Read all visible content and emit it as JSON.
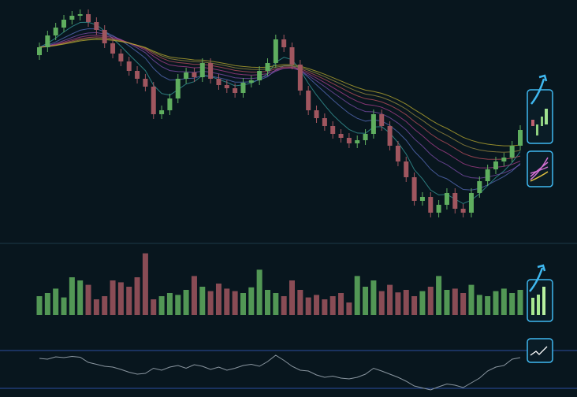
{
  "chart_data": [
    {
      "type": "candlestick",
      "up_color": "#5fae5f",
      "down_color": "#a0565f",
      "ylim": [
        0,
        300
      ],
      "open": [
        230,
        240,
        255,
        265,
        275,
        280,
        282,
        272,
        262,
        245,
        232,
        222,
        210,
        200,
        190,
        155,
        160,
        175,
        200,
        208,
        202,
        220,
        200,
        192,
        188,
        182,
        195,
        198,
        210,
        220,
        250,
        240,
        218,
        185,
        160,
        150,
        140,
        130,
        125,
        118,
        122,
        130,
        155,
        140,
        115,
        95,
        75,
        45,
        50,
        30,
        40,
        55,
        35,
        30,
        55,
        70,
        85,
        95,
        100,
        115
      ],
      "close": [
        240,
        255,
        265,
        275,
        280,
        282,
        272,
        262,
        245,
        232,
        222,
        210,
        200,
        190,
        155,
        160,
        175,
        200,
        208,
        202,
        220,
        200,
        192,
        188,
        182,
        195,
        198,
        210,
        220,
        250,
        240,
        218,
        185,
        160,
        150,
        140,
        130,
        125,
        118,
        122,
        130,
        155,
        140,
        115,
        95,
        75,
        45,
        50,
        30,
        40,
        55,
        35,
        30,
        55,
        70,
        85,
        95,
        100,
        115,
        135
      ],
      "high": [
        246,
        261,
        271,
        281,
        286,
        288,
        288,
        278,
        268,
        251,
        238,
        228,
        216,
        206,
        196,
        166,
        181,
        206,
        214,
        214,
        226,
        226,
        206,
        198,
        194,
        201,
        204,
        216,
        226,
        256,
        256,
        246,
        224,
        191,
        166,
        156,
        146,
        136,
        131,
        128,
        136,
        161,
        161,
        146,
        121,
        101,
        81,
        56,
        56,
        46,
        61,
        61,
        41,
        61,
        76,
        91,
        101,
        106,
        121,
        141
      ],
      "low": [
        224,
        234,
        249,
        259,
        269,
        274,
        266,
        256,
        239,
        226,
        216,
        204,
        194,
        184,
        149,
        149,
        154,
        169,
        194,
        196,
        196,
        194,
        186,
        182,
        176,
        176,
        189,
        192,
        204,
        214,
        234,
        212,
        179,
        154,
        144,
        134,
        124,
        119,
        112,
        112,
        116,
        124,
        134,
        109,
        89,
        69,
        39,
        39,
        24,
        24,
        34,
        29,
        24,
        24,
        49,
        64,
        79,
        89,
        94,
        109
      ]
    },
    {
      "type": "bar",
      "ylim": [
        0,
        100
      ],
      "values": [
        30,
        35,
        42,
        28,
        60,
        55,
        48,
        25,
        30,
        55,
        52,
        45,
        60,
        98,
        25,
        30,
        35,
        32,
        40,
        62,
        45,
        38,
        50,
        42,
        38,
        35,
        44,
        72,
        40,
        35,
        30,
        55,
        40,
        28,
        32,
        25,
        30,
        35,
        20,
        62,
        45,
        55,
        38,
        48,
        36,
        40,
        30,
        38,
        45,
        62,
        40,
        42,
        35,
        48,
        32,
        30,
        38,
        42,
        35,
        40
      ]
    },
    {
      "type": "line",
      "ylim": [
        0,
        100
      ],
      "values": [
        80,
        78,
        84,
        82,
        85,
        83,
        70,
        65,
        60,
        58,
        52,
        45,
        40,
        42,
        55,
        50,
        58,
        62,
        55,
        64,
        60,
        52,
        58,
        50,
        55,
        62,
        65,
        60,
        72,
        88,
        75,
        60,
        50,
        48,
        38,
        32,
        35,
        30,
        28,
        32,
        40,
        55,
        48,
        40,
        32,
        22,
        10,
        5,
        0,
        8,
        15,
        12,
        6,
        18,
        30,
        48,
        58,
        62,
        78,
        82
      ]
    }
  ]
}
